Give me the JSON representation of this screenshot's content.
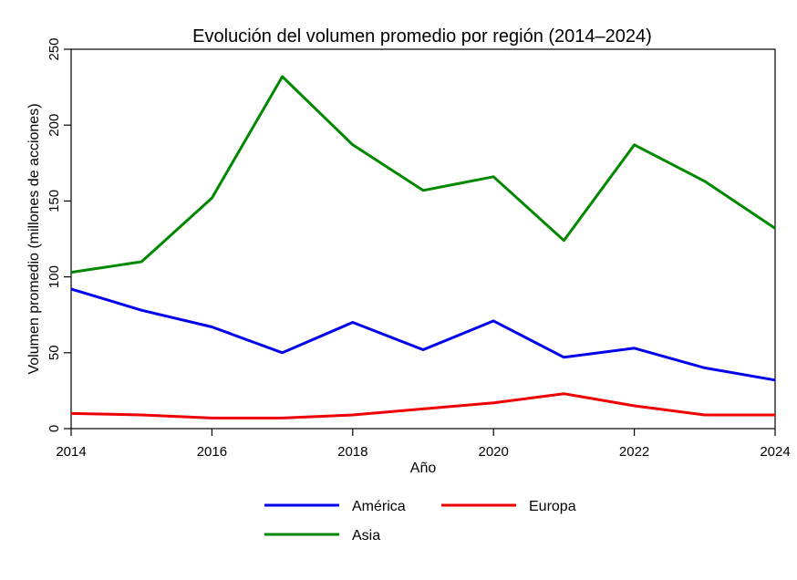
{
  "chart_data": {
    "type": "line",
    "title": "Evolución del volumen promedio por región (2014–2024)",
    "xlabel": "Año",
    "ylabel": "Volumen promedio (millones de acciones)",
    "x": [
      2014,
      2015,
      2016,
      2017,
      2018,
      2019,
      2020,
      2021,
      2022,
      2023,
      2024
    ],
    "xlim": [
      2014,
      2024
    ],
    "ylim": [
      0,
      250
    ],
    "xticks": [
      2014,
      2016,
      2018,
      2020,
      2022,
      2024
    ],
    "yticks": [
      0,
      50,
      100,
      150,
      200,
      250
    ],
    "grid": false,
    "legend_position": "bottom",
    "series": [
      {
        "name": "América",
        "color": "#0000ee",
        "values": [
          92,
          78,
          67,
          50,
          70,
          52,
          71,
          47,
          53,
          40,
          32
        ]
      },
      {
        "name": "Europa",
        "color": "#ee0000",
        "values": [
          10,
          9,
          7,
          7,
          9,
          13,
          17,
          23,
          15,
          9,
          9
        ]
      },
      {
        "name": "Asia",
        "color": "#008800",
        "values": [
          103,
          110,
          152,
          232,
          187,
          157,
          166,
          124,
          187,
          163,
          132
        ]
      }
    ]
  }
}
